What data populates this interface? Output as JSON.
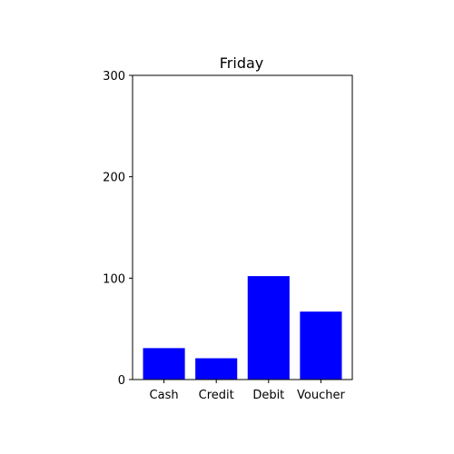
{
  "chart_data": {
    "type": "bar",
    "title": "Friday",
    "xlabel": "",
    "ylabel": "",
    "categories": [
      "Cash",
      "Credit",
      "Debit",
      "Voucher"
    ],
    "values": [
      31,
      21,
      102,
      67
    ],
    "ylim": [
      0,
      300
    ],
    "yticks": [
      0,
      100,
      200,
      300
    ],
    "bar_color": "#0000ff",
    "grid": false,
    "legend": "none"
  }
}
